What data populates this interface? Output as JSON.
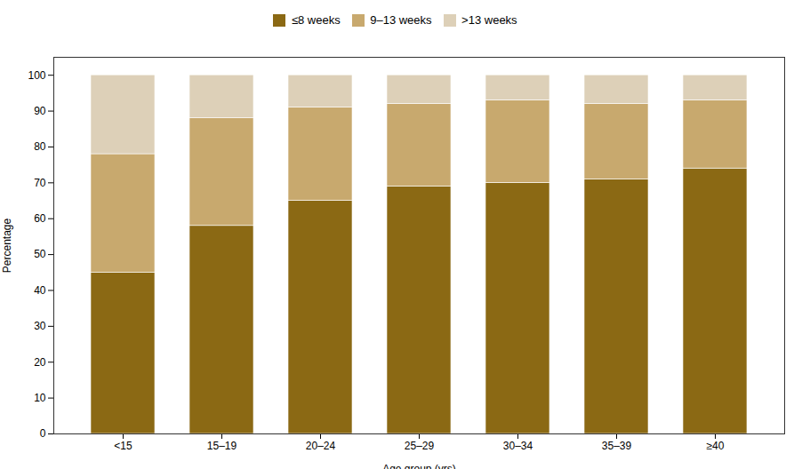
{
  "chart_data": {
    "type": "bar",
    "stacked": true,
    "xlabel": "Age group (yrs)",
    "ylabel": "Percentage",
    "categories": [
      "<15",
      "15–19",
      "20–24",
      "25–29",
      "30–34",
      "35–39",
      "≥40"
    ],
    "series": [
      {
        "name": "≤8 weeks",
        "color": "#8B6914",
        "values": [
          45,
          58,
          65,
          69,
          70,
          71,
          74
        ]
      },
      {
        "name": "9–13 weeks",
        "color": "#C8A96E",
        "values": [
          33,
          30,
          26,
          23,
          23,
          21,
          19
        ]
      },
      {
        "name": ">13 weeks",
        "color": "#DDD0B8",
        "values": [
          22,
          12,
          9,
          8,
          7,
          8,
          7
        ]
      }
    ],
    "ylim": [
      0,
      105
    ],
    "yticks": [
      0,
      10,
      20,
      30,
      40,
      50,
      60,
      70,
      80,
      90,
      100
    ],
    "grid": false,
    "legend": "top"
  }
}
